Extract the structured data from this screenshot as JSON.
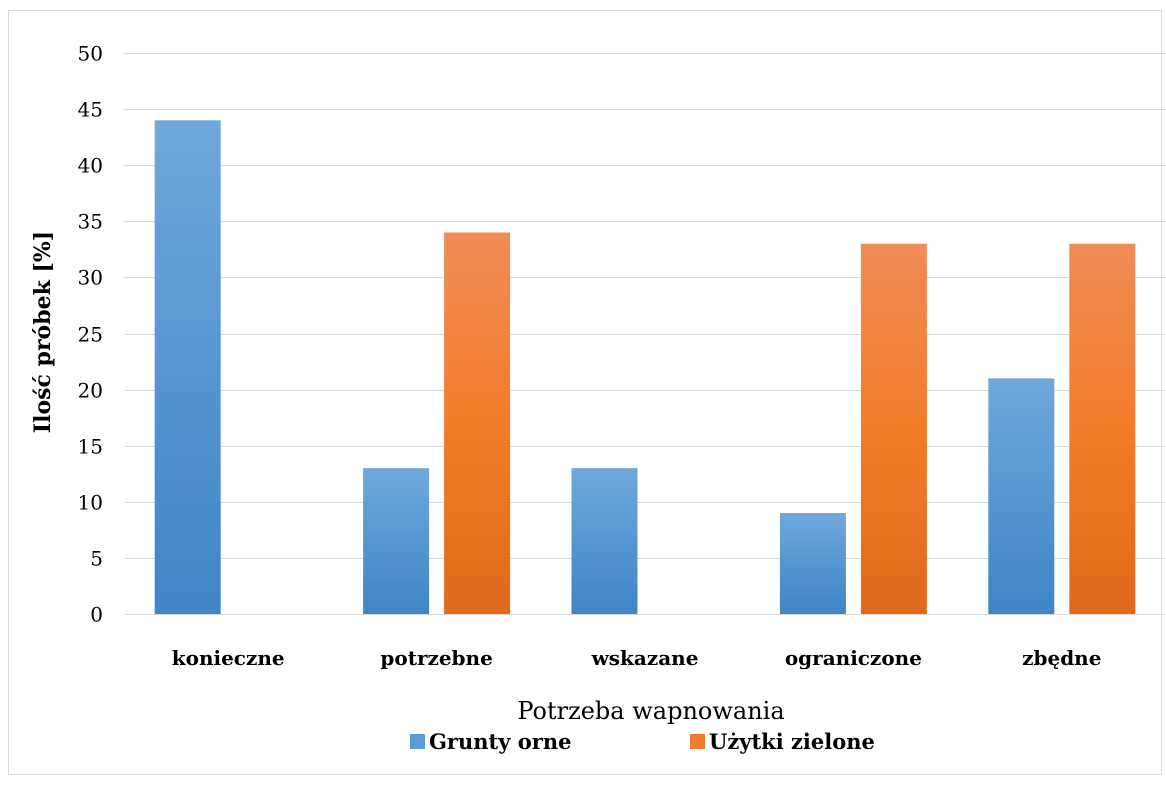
{
  "chart_data": {
    "type": "bar",
    "categories": [
      "konieczne",
      "potrzebne",
      "wskazane",
      "ograniczone",
      "zbędne"
    ],
    "series": [
      {
        "name": "Grunty orne",
        "values": [
          44,
          13,
          13,
          9,
          21
        ],
        "color": "#5b9bd5"
      },
      {
        "name": "Użytki zielone",
        "values": [
          0,
          34,
          0,
          33,
          33
        ],
        "color": "#ed7d31"
      }
    ],
    "title": "",
    "xlabel": "Potrzeba wapnowania",
    "ylabel": "Ilość próbek [%]",
    "ylim": [
      0,
      50
    ],
    "yticks": [
      0,
      5,
      10,
      15,
      20,
      25,
      30,
      35,
      40,
      45,
      50
    ],
    "grid": true,
    "legend": "bottom"
  }
}
